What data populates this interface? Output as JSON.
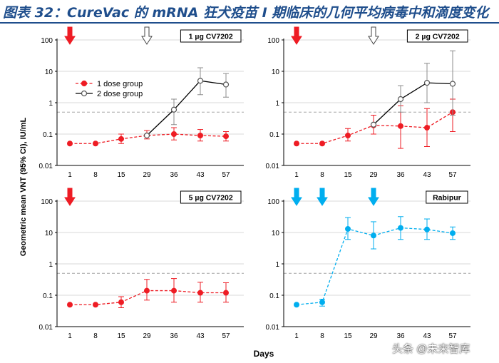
{
  "figure_title": "图表 32：CureVac 的 mRNA 狂犬疫苗 I 期临床的几何平均病毒中和滴度变化",
  "watermark": "头条 @未来智库",
  "colors": {
    "title": "#1f4e8c",
    "red": "#ee1c24",
    "blue": "#00aeef",
    "gray": "#8c8c8c",
    "refline": "#a6a6a6",
    "hollow_marker": "#555555"
  },
  "chart_data": {
    "type": "line",
    "ylabel": "Geometric mean VNT (95% CI), IU/mL",
    "xlabel": "Days",
    "x_ticks": [
      "1",
      "8",
      "15",
      "29",
      "36",
      "43",
      "57"
    ],
    "y_scale": "log",
    "ylim": [
      0.01,
      100
    ],
    "y_ticks": [
      "0.01",
      "0.1",
      "1",
      "10",
      "100"
    ],
    "reference_line": 0.5,
    "panels": [
      {
        "title": "1 µg CV7202",
        "arrows": [
          {
            "day": "1",
            "style": "solid",
            "color": "red"
          },
          {
            "day": "29",
            "style": "hollow",
            "color": "gray"
          }
        ],
        "legend": [
          "1 dose group",
          "2 dose group"
        ],
        "series": [
          {
            "name": "1 dose group",
            "style": "dashed-filled",
            "color": "red",
            "points": [
              {
                "day": "1",
                "value": 0.05,
                "lo": null,
                "hi": null
              },
              {
                "day": "8",
                "value": 0.05,
                "lo": null,
                "hi": null
              },
              {
                "day": "15",
                "value": 0.07,
                "lo": 0.05,
                "hi": 0.1
              },
              {
                "day": "29",
                "value": 0.09,
                "lo": 0.07,
                "hi": 0.13
              },
              {
                "day": "36",
                "value": 0.1,
                "lo": 0.065,
                "hi": 0.16
              },
              {
                "day": "43",
                "value": 0.09,
                "lo": 0.06,
                "hi": 0.14
              },
              {
                "day": "57",
                "value": 0.085,
                "lo": 0.06,
                "hi": 0.12
              }
            ]
          },
          {
            "name": "2 dose group",
            "style": "solid-hollow",
            "color": "black",
            "points": [
              {
                "day": "29",
                "value": 0.09,
                "lo": null,
                "hi": null
              },
              {
                "day": "36",
                "value": 0.6,
                "lo": 0.2,
                "hi": 1.3
              },
              {
                "day": "43",
                "value": 5.0,
                "lo": 1.8,
                "hi": 13
              },
              {
                "day": "57",
                "value": 3.8,
                "lo": 1.5,
                "hi": 8.5
              }
            ]
          }
        ]
      },
      {
        "title": "2 µg CV7202",
        "arrows": [
          {
            "day": "1",
            "style": "solid",
            "color": "red"
          },
          {
            "day": "29",
            "style": "hollow",
            "color": "gray"
          }
        ],
        "series": [
          {
            "name": "1 dose group",
            "style": "dashed-filled",
            "color": "red",
            "points": [
              {
                "day": "1",
                "value": 0.05,
                "lo": null,
                "hi": null
              },
              {
                "day": "8",
                "value": 0.05,
                "lo": null,
                "hi": null
              },
              {
                "day": "15",
                "value": 0.09,
                "lo": 0.06,
                "hi": 0.15
              },
              {
                "day": "29",
                "value": 0.19,
                "lo": 0.1,
                "hi": 0.4
              },
              {
                "day": "36",
                "value": 0.18,
                "lo": 0.035,
                "hi": 0.8
              },
              {
                "day": "43",
                "value": 0.16,
                "lo": 0.04,
                "hi": 0.65
              },
              {
                "day": "57",
                "value": 0.5,
                "lo": 0.12,
                "hi": 1.3
              }
            ]
          },
          {
            "name": "2 dose group",
            "style": "solid-hollow",
            "color": "black",
            "points": [
              {
                "day": "29",
                "value": 0.2,
                "lo": null,
                "hi": null
              },
              {
                "day": "36",
                "value": 1.3,
                "lo": 0.5,
                "hi": 3.5
              },
              {
                "day": "43",
                "value": 4.3,
                "lo": 1.0,
                "hi": 18
              },
              {
                "day": "57",
                "value": 4.0,
                "lo": 0.4,
                "hi": 45
              }
            ]
          }
        ]
      },
      {
        "title": "5 µg CV7202",
        "arrows": [
          {
            "day": "1",
            "style": "solid",
            "color": "red"
          }
        ],
        "series": [
          {
            "name": "1 dose group",
            "style": "dashed-filled",
            "color": "red",
            "points": [
              {
                "day": "1",
                "value": 0.05,
                "lo": null,
                "hi": null
              },
              {
                "day": "8",
                "value": 0.05,
                "lo": null,
                "hi": null
              },
              {
                "day": "15",
                "value": 0.06,
                "lo": 0.04,
                "hi": 0.09
              },
              {
                "day": "29",
                "value": 0.14,
                "lo": 0.07,
                "hi": 0.32
              },
              {
                "day": "36",
                "value": 0.14,
                "lo": 0.06,
                "hi": 0.34
              },
              {
                "day": "43",
                "value": 0.12,
                "lo": 0.06,
                "hi": 0.26
              },
              {
                "day": "57",
                "value": 0.12,
                "lo": 0.06,
                "hi": 0.25
              }
            ]
          }
        ]
      },
      {
        "title": "Rabipur",
        "arrows": [
          {
            "day": "1",
            "style": "solid",
            "color": "blue"
          },
          {
            "day": "8",
            "style": "solid",
            "color": "blue"
          },
          {
            "day": "29",
            "style": "solid",
            "color": "blue"
          }
        ],
        "series": [
          {
            "name": "Rabipur",
            "style": "dashed-filled",
            "color": "blue",
            "points": [
              {
                "day": "1",
                "value": 0.05,
                "lo": null,
                "hi": null
              },
              {
                "day": "8",
                "value": 0.06,
                "lo": 0.045,
                "hi": 0.075
              },
              {
                "day": "15",
                "value": 13,
                "lo": 6,
                "hi": 30
              },
              {
                "day": "29",
                "value": 8,
                "lo": 3,
                "hi": 22
              },
              {
                "day": "36",
                "value": 14,
                "lo": 6,
                "hi": 32
              },
              {
                "day": "43",
                "value": 12.5,
                "lo": 6,
                "hi": 27
              },
              {
                "day": "57",
                "value": 9.5,
                "lo": 6,
                "hi": 15
              }
            ]
          }
        ]
      }
    ]
  }
}
